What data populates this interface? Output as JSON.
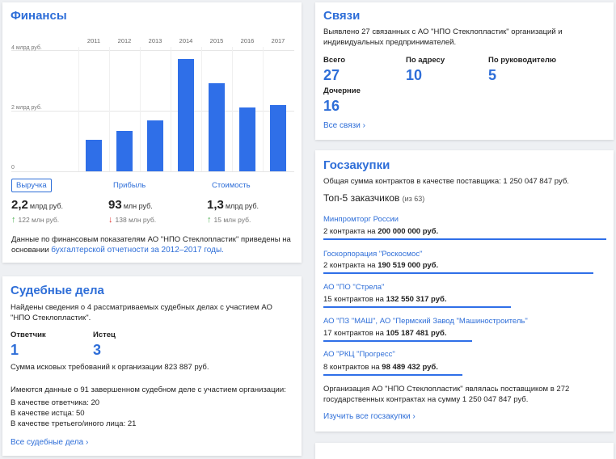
{
  "finance": {
    "title": "Финансы",
    "y_ticks": [
      "4 млрд руб.",
      "2 млрд руб.",
      "0"
    ],
    "tabs": [
      "Выручка",
      "Прибыль",
      "Стоимость"
    ],
    "metrics": [
      {
        "value": "2,2",
        "unit": "млрд руб.",
        "delta": "122 млн руб.",
        "trend": "up"
      },
      {
        "value": "93",
        "unit": "млн руб.",
        "delta": "138 млн руб.",
        "trend": "down"
      },
      {
        "value": "1,3",
        "unit": "млрд руб.",
        "delta": "15 млн руб.",
        "trend": "up"
      }
    ],
    "note_text": "Данные по финансовым показателям АО \"НПО Стеклопластик\" приведены на основании ",
    "note_link": "бухгалтерской отчетности за 2012–2017 годы."
  },
  "chart_data": {
    "type": "bar",
    "categories": [
      "2011",
      "2012",
      "2013",
      "2014",
      "2015",
      "2016",
      "2017"
    ],
    "values": [
      1.05,
      1.33,
      1.68,
      3.72,
      2.9,
      2.1,
      2.2
    ],
    "ylabel": "",
    "ylim": [
      0,
      4
    ],
    "grid": true,
    "series": [
      {
        "values": [
          1.05,
          1.33,
          1.68,
          3.72,
          2.9,
          2.1,
          2.2
        ]
      }
    ]
  },
  "links": {
    "title": "Связи",
    "desc": "Выявлено 27 связанных с АО \"НПО Стеклопластик\" организаций и индивидуальных предпринимателей.",
    "stats": [
      {
        "label": "Всего",
        "value": "27"
      },
      {
        "label": "По адресу",
        "value": "10"
      },
      {
        "label": "По руководителю",
        "value": "5"
      },
      {
        "label": "Дочерние",
        "value": "16"
      }
    ],
    "all_link": "Все связи"
  },
  "court": {
    "title": "Судебные дела",
    "desc": "Найдены сведения о 4 рассматриваемых судебных делах с участием АО \"НПО Стеклопластик\".",
    "stats": [
      {
        "label": "Ответчик",
        "value": "1"
      },
      {
        "label": "Истец",
        "value": "3"
      }
    ],
    "claims_text": "Сумма исковых требований к организации ",
    "claims_value": "823 887 руб.",
    "completed": "Имеются данные о 91 завершенном судебном деле с участием организации:",
    "roles": [
      "В качестве ответчика: 20",
      "В качестве истца: 50",
      "В качестве третьего/иного лица: 21"
    ],
    "all_link": "Все судебные дела"
  },
  "procurement": {
    "title": "Госзакупки",
    "total_text": "Общая сумма контрактов в качестве поставщика: ",
    "total_value": "1 250 047 847 руб.",
    "top_title": "Топ-5 заказчиков",
    "top_count": "(из 63)",
    "customers": [
      {
        "name": "Минпромторг России",
        "count": "2 контракта на ",
        "amount": "200 000 000 руб.",
        "share": 1.0
      },
      {
        "name": "Госкорпорация \"Роскосмос\"",
        "count": "2 контракта на ",
        "amount": "190 519 000 руб.",
        "share": 0.953
      },
      {
        "name": "АО \"ПО \"Стрела\"",
        "count": "15 контрактов на ",
        "amount": "132 550 317 руб.",
        "share": 0.663
      },
      {
        "name": "АО \"ПЗ \"МАШ\", АО \"Пермский Завод \"Машиностроитель\"",
        "count": "17 контрактов на ",
        "amount": "105 187 481 руб.",
        "share": 0.526
      },
      {
        "name": "АО \"РКЦ \"Прогресс\"",
        "count": "8 контрактов на ",
        "amount": "98 489 432 руб.",
        "share": 0.492
      }
    ],
    "summary": "Организация АО \"НПО Стеклопластик\" являлась поставщиком в 272 государственных контрактах на сумму 1 250 047 847 руб.",
    "all_link": "Изучить все госзакупки"
  },
  "colors": {
    "accent": "#2e6ed8",
    "bar": "#2f6fe8",
    "up": "#4caf50",
    "down": "#e53935"
  }
}
